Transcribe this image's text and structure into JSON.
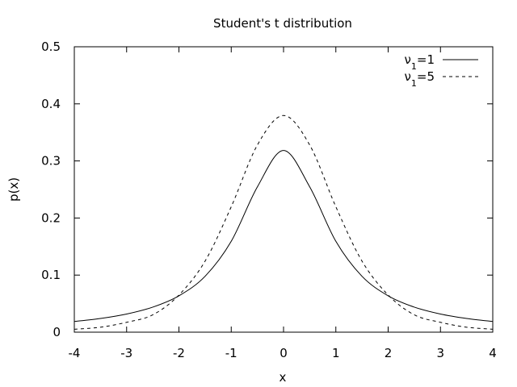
{
  "chart_data": {
    "type": "line",
    "title": "Student's t distribution",
    "xlabel": "x",
    "ylabel": "p(x)",
    "xlim": [
      -4,
      4
    ],
    "ylim": [
      0,
      0.5
    ],
    "xticks": [
      -4,
      -3,
      -2,
      -1,
      0,
      1,
      2,
      3,
      4
    ],
    "xtick_labels": [
      "-4",
      "-3",
      "-2",
      "-1",
      "0",
      "1",
      "2",
      "3",
      "4"
    ],
    "yticks": [
      0,
      0.1,
      0.2,
      0.3,
      0.4,
      0.5
    ],
    "ytick_labels": [
      "0",
      "0.1",
      "0.2",
      "0.3",
      "0.4",
      "0.5"
    ],
    "grid": false,
    "legend_position": "top-right",
    "x": [
      -4,
      -3.5,
      -3,
      -2.5,
      -2,
      -1.5,
      -1,
      -0.5,
      0,
      0.5,
      1,
      1.5,
      2,
      2.5,
      3,
      3.5,
      4
    ],
    "series": [
      {
        "name": "ν1=1",
        "legend_base": "ν",
        "legend_sub": "1",
        "legend_rest": "=1",
        "style": "solid",
        "values": [
          0.0187,
          0.024,
          0.0318,
          0.0439,
          0.0637,
          0.0979,
          0.1592,
          0.2546,
          0.3183,
          0.2546,
          0.1592,
          0.0979,
          0.0637,
          0.0439,
          0.0318,
          0.024,
          0.0187
        ]
      },
      {
        "name": "ν1=5",
        "legend_base": "ν",
        "legend_sub": "1",
        "legend_rest": "=5",
        "style": "dashed",
        "values": [
          0.0051,
          0.0087,
          0.0173,
          0.0304,
          0.0651,
          0.1245,
          0.2197,
          0.3279,
          0.3796,
          0.3279,
          0.2197,
          0.1245,
          0.0651,
          0.0304,
          0.0173,
          0.0087,
          0.0051
        ]
      }
    ]
  }
}
